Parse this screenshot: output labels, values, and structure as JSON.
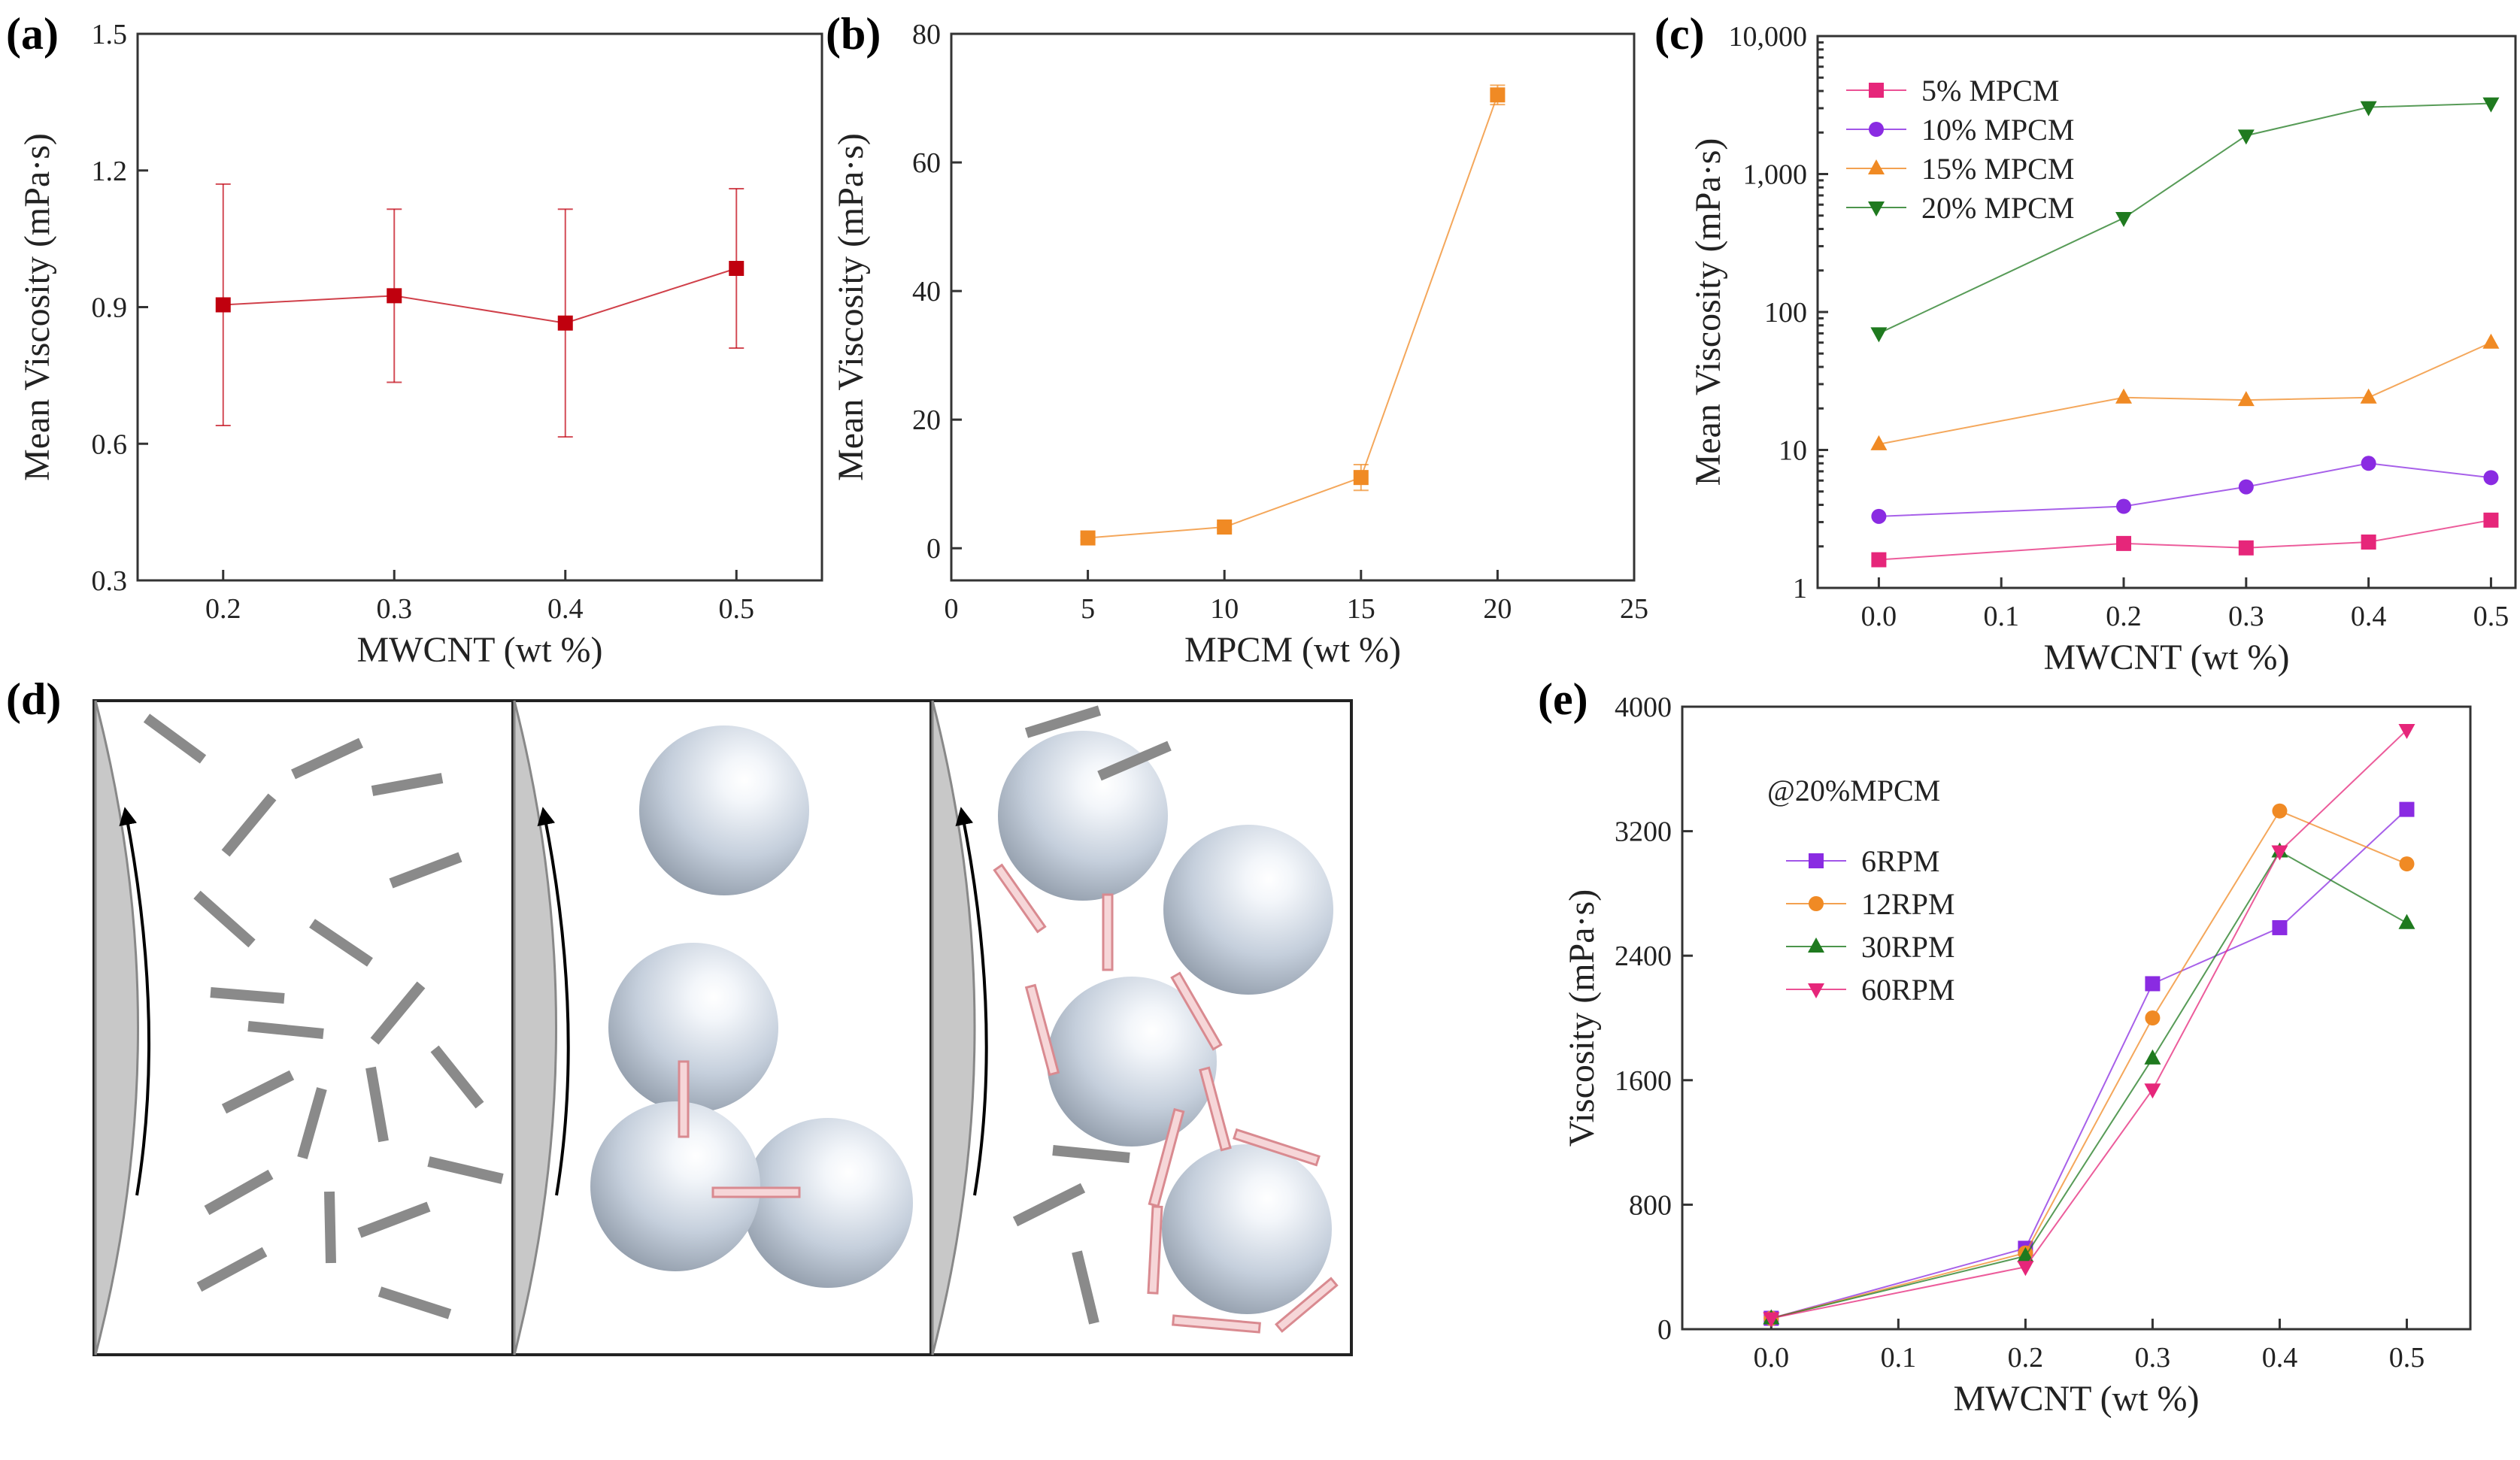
{
  "figure": {
    "panel_labels": [
      "(a)",
      "(b)",
      "(c)",
      "(d)",
      "(e)"
    ]
  },
  "chart_data": [
    {
      "panel": "(a)",
      "type": "line",
      "xlabel": "MWCNT (wt %)",
      "ylabel": "Mean Viscosity (mPa·s)",
      "xlim": [
        0.15,
        0.55
      ],
      "ylim": [
        0.3,
        1.5
      ],
      "xticks": [
        0.2,
        0.3,
        0.4,
        0.5
      ],
      "xtick_labels": [
        "0.2",
        "0.3",
        "0.4",
        "0.5"
      ],
      "yticks": [
        0.3,
        0.6,
        0.9,
        1.2,
        1.5
      ],
      "ytick_labels": [
        "0.3",
        "0.6",
        "0.9",
        "1.2",
        "1.5"
      ],
      "series": [
        {
          "name": "",
          "color": "#c0000e",
          "marker": "square",
          "x": [
            0.2,
            0.3,
            0.4,
            0.5
          ],
          "y": [
            0.905,
            0.925,
            0.865,
            0.985
          ],
          "err": [
            0.265,
            0.19,
            0.25,
            0.175
          ]
        }
      ]
    },
    {
      "panel": "(b)",
      "type": "line",
      "xlabel": "MPCM (wt %)",
      "ylabel": "Mean Viscosity (mPa·s)",
      "xlim": [
        0,
        25
      ],
      "ylim": [
        -5,
        80
      ],
      "xticks": [
        0,
        5,
        10,
        15,
        20,
        25
      ],
      "xtick_labels": [
        "0",
        "5",
        "10",
        "15",
        "20",
        "25"
      ],
      "yticks": [
        0,
        20,
        40,
        60,
        80
      ],
      "ytick_labels": [
        "0",
        "20",
        "40",
        "60",
        "80"
      ],
      "series": [
        {
          "name": "",
          "color": "#f08a24",
          "marker": "square",
          "x": [
            5,
            10,
            15,
            20
          ],
          "y": [
            1.6,
            3.3,
            11.0,
            70.5
          ],
          "err": [
            0.3,
            0.4,
            2.0,
            1.5
          ]
        }
      ]
    },
    {
      "panel": "(c)",
      "type": "line",
      "xlabel": "MWCNT (wt %)",
      "ylabel": "Mean Viscosity (mPa·s)",
      "yscale": "log",
      "xlim": [
        -0.05,
        0.52
      ],
      "ylim": [
        1,
        10000
      ],
      "xticks": [
        0.0,
        0.1,
        0.2,
        0.3,
        0.4,
        0.5
      ],
      "xtick_labels": [
        "0.0",
        "0.1",
        "0.2",
        "0.3",
        "0.4",
        "0.5"
      ],
      "yticks": [
        1,
        10,
        100,
        1000,
        10000
      ],
      "ytick_labels": [
        "1",
        "10",
        "100",
        "1,000",
        "10,000"
      ],
      "legend_position": "top-left",
      "series": [
        {
          "name": "5% MPCM",
          "color": "#e6267a",
          "marker": "square",
          "x": [
            0.0,
            0.2,
            0.3,
            0.4,
            0.5
          ],
          "y": [
            1.6,
            2.1,
            1.95,
            2.15,
            3.1
          ]
        },
        {
          "name": "10% MPCM",
          "color": "#8a2be2",
          "marker": "circle",
          "x": [
            0.0,
            0.2,
            0.3,
            0.4,
            0.5
          ],
          "y": [
            3.3,
            3.9,
            5.4,
            8.0,
            6.3
          ]
        },
        {
          "name": "15% MPCM",
          "color": "#f08a24",
          "marker": "triangle-up",
          "x": [
            0.0,
            0.2,
            0.3,
            0.4,
            0.5
          ],
          "y": [
            11.0,
            24.0,
            23.0,
            24.0,
            60.0
          ]
        },
        {
          "name": "20% MPCM",
          "color": "#1f7a1f",
          "marker": "triangle-down",
          "x": [
            0.0,
            0.2,
            0.3,
            0.4,
            0.5
          ],
          "y": [
            70,
            480,
            1900,
            3050,
            3250
          ]
        }
      ]
    },
    {
      "panel": "(e)",
      "type": "line",
      "xlabel": "MWCNT (wt %)",
      "ylabel": "Viscosity (mPa·s)",
      "xlim": [
        -0.07,
        0.55
      ],
      "ylim": [
        0,
        4000
      ],
      "xticks": [
        0.0,
        0.1,
        0.2,
        0.3,
        0.4,
        0.5
      ],
      "xtick_labels": [
        "0.0",
        "0.1",
        "0.2",
        "0.3",
        "0.4",
        "0.5"
      ],
      "yticks": [
        0,
        800,
        1600,
        2400,
        3200,
        4000
      ],
      "ytick_labels": [
        "0",
        "800",
        "1600",
        "2400",
        "3200",
        "4000"
      ],
      "legend_title": "@20%MPCM",
      "legend_position": "center-left",
      "series": [
        {
          "name": "6RPM",
          "color": "#8a2be2",
          "marker": "square",
          "x": [
            0.0,
            0.2,
            0.3,
            0.4,
            0.5
          ],
          "y": [
            70,
            520,
            2220,
            2580,
            3340
          ]
        },
        {
          "name": "12RPM",
          "color": "#f08a24",
          "marker": "circle",
          "x": [
            0.0,
            0.2,
            0.3,
            0.4,
            0.5
          ],
          "y": [
            70,
            490,
            2000,
            3330,
            2990
          ]
        },
        {
          "name": "30RPM",
          "color": "#1f7a1f",
          "marker": "triangle-up",
          "x": [
            0.0,
            0.2,
            0.3,
            0.4,
            0.5
          ],
          "y": [
            70,
            470,
            1740,
            3070,
            2610
          ]
        },
        {
          "name": "60RPM",
          "color": "#e6267a",
          "marker": "triangle-down",
          "x": [
            0.0,
            0.2,
            0.3,
            0.4,
            0.5
          ],
          "y": [
            70,
            400,
            1540,
            3070,
            3850
          ]
        }
      ]
    }
  ],
  "colors": {
    "sphere": "#c5cfdc",
    "rod": "#8a8a8a",
    "wall": "#c8c8c8",
    "arrow": "#e5a3a8"
  }
}
